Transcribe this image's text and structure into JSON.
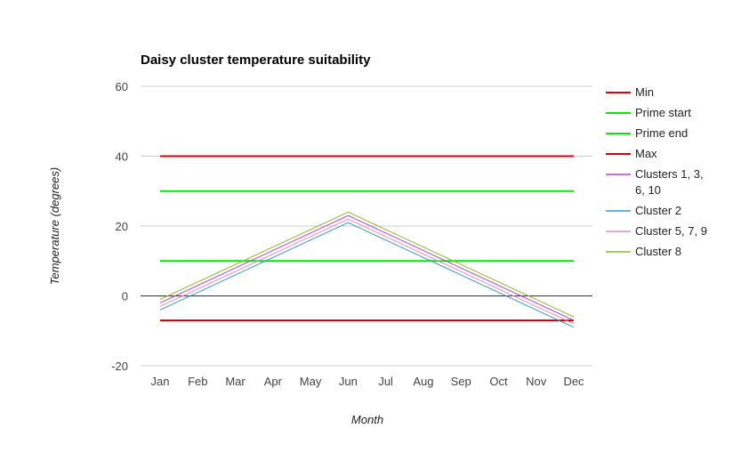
{
  "chart_data": {
    "type": "line",
    "title": "Daisy cluster temperature suitability",
    "xlabel": "Month",
    "ylabel": "Temperature (degrees)",
    "categories": [
      "Jan",
      "Feb",
      "Mar",
      "Apr",
      "May",
      "Jun",
      "Jul",
      "Aug",
      "Sep",
      "Oct",
      "Nov",
      "Dec"
    ],
    "ylim": [
      -20,
      60
    ],
    "yticks": [
      -20,
      0,
      20,
      40,
      60
    ],
    "grid": true,
    "legend_position": "right",
    "series": [
      {
        "name": "Min",
        "color": "#dd0000",
        "width": 2,
        "values": [
          -7,
          -7,
          -7,
          -7,
          -7,
          -7,
          -7,
          -7,
          -7,
          -7,
          -7,
          -7
        ]
      },
      {
        "name": "Prime start",
        "color": "#00ee00",
        "width": 2,
        "values": [
          10,
          10,
          10,
          10,
          10,
          10,
          10,
          10,
          10,
          10,
          10,
          10
        ]
      },
      {
        "name": "Prime end",
        "color": "#00ee00",
        "width": 2,
        "values": [
          30,
          30,
          30,
          30,
          30,
          30,
          30,
          30,
          30,
          30,
          30,
          30
        ]
      },
      {
        "name": "Max",
        "color": "#dd0000",
        "width": 2,
        "values": [
          40,
          40,
          40,
          40,
          40,
          40,
          40,
          40,
          40,
          40,
          40,
          40
        ]
      },
      {
        "name": "Clusters 1, 3, 6, 10",
        "color": "#aa44cc",
        "width": 1,
        "values": [
          -2,
          3,
          8,
          13,
          18,
          23,
          18,
          13,
          8,
          3,
          -2,
          -7
        ]
      },
      {
        "name": "Cluster 2",
        "color": "#3399cc",
        "width": 1,
        "values": [
          -4,
          1,
          6,
          11,
          16,
          21,
          16,
          11,
          6,
          1,
          -4,
          -9
        ]
      },
      {
        "name": "Cluster 5, 7, 9",
        "color": "#ee88bb",
        "width": 1,
        "values": [
          -3,
          2,
          7,
          12,
          17,
          22,
          17,
          12,
          7,
          2,
          -3,
          -8
        ]
      },
      {
        "name": "Cluster 8",
        "color": "#88bb22",
        "width": 1,
        "values": [
          -1,
          4,
          9,
          14,
          19,
          24,
          19,
          14,
          9,
          4,
          -1,
          -6
        ]
      }
    ]
  }
}
